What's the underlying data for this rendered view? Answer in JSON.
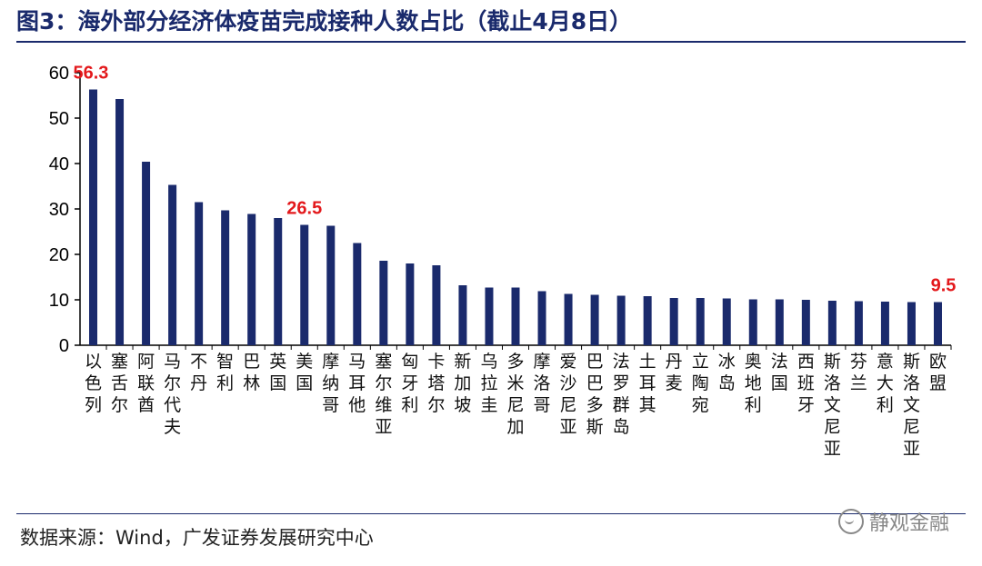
{
  "header": {
    "title": "图3：海外部分经济体疫苗完成接种人数占比（截止4月8日）"
  },
  "footer": {
    "source": "数据来源：Wind，广发证券发展研究中心",
    "watermark": "静观金融"
  },
  "chart_data": {
    "type": "bar",
    "title": "图3：海外部分经济体疫苗完成接种人数占比（截止4月8日）",
    "xlabel": "",
    "ylabel": "",
    "ylim": [
      0,
      60
    ],
    "yticks": [
      0,
      10,
      20,
      30,
      40,
      50,
      60
    ],
    "grid": false,
    "bar_color": "#1a2a6c",
    "label_color": "#e3191c",
    "categories": [
      "以色列",
      "塞舌尔",
      "阿联酋",
      "马尔代夫",
      "不丹",
      "智利",
      "巴林",
      "英国",
      "美国",
      "摩纳哥",
      "马耳他",
      "塞尔维亚",
      "匈牙利",
      "卡塔尔",
      "新加坡",
      "乌拉圭",
      "多米尼加",
      "摩洛哥",
      "爱沙尼亚",
      "巴巴多斯",
      "法罗群岛",
      "土耳其",
      "丹麦",
      "立陶宛",
      "冰岛",
      "奥地利",
      "法国",
      "西班牙",
      "斯洛文尼亚",
      "芬兰",
      "意大利",
      "斯洛文尼亚",
      "欧盟"
    ],
    "values": [
      56.3,
      54.2,
      40.4,
      35.3,
      31.5,
      29.7,
      28.9,
      28.0,
      26.5,
      26.3,
      22.5,
      18.6,
      18.0,
      17.6,
      13.2,
      12.7,
      12.7,
      11.9,
      11.3,
      11.1,
      10.9,
      10.8,
      10.4,
      10.4,
      10.3,
      10.1,
      10.1,
      10.0,
      9.8,
      9.7,
      9.6,
      9.5,
      9.5
    ],
    "annotations": [
      {
        "index": 0,
        "text": "56.3"
      },
      {
        "index": 8,
        "text": "26.5"
      },
      {
        "index": 32,
        "text": "9.5"
      }
    ]
  }
}
